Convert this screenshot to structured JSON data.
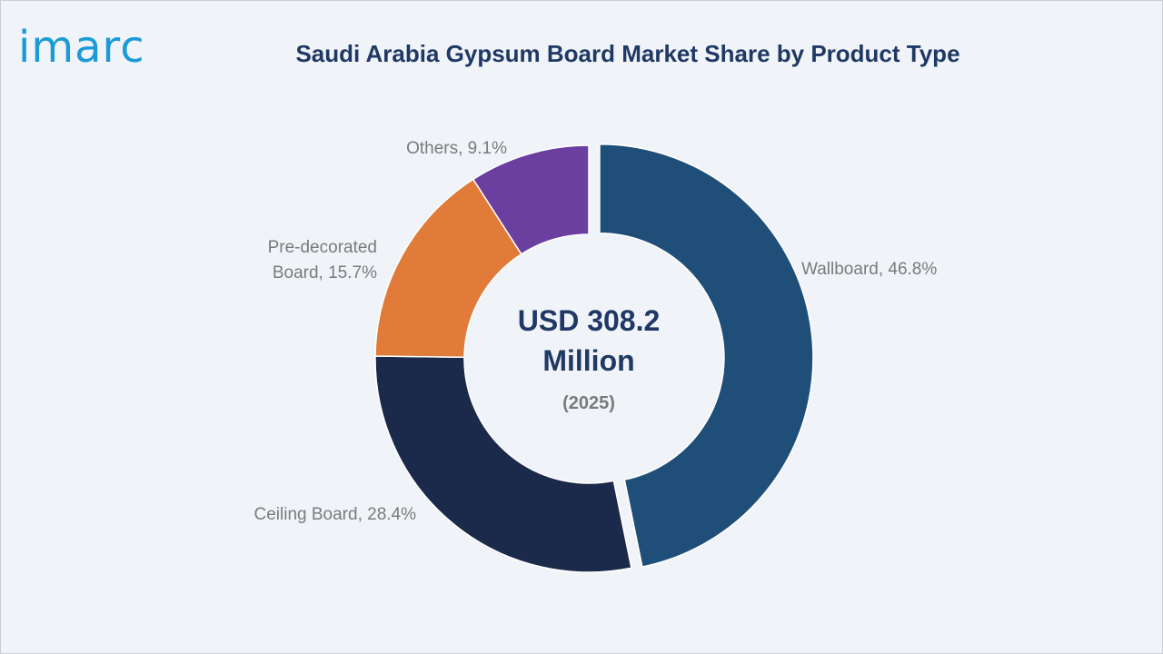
{
  "brand": {
    "logo_text": "imarc",
    "logo_color": "#1a9ad6"
  },
  "colors": {
    "title": "#1f3864",
    "label": "#7a7a7a",
    "center": "#1f3864",
    "center_year": "#7a7a7a",
    "background": "#f0f4f9"
  },
  "chart_data": {
    "type": "pie",
    "style": "donut",
    "title": "Saudi Arabia Gypsum Board Market Share by Product Type",
    "center_text": {
      "line1": "USD 308.2",
      "line2": "Million",
      "line3": "(2025)"
    },
    "unit": "%",
    "slices": [
      {
        "name": "Wallboard",
        "value": 46.8,
        "label": "Wallboard, 46.8%",
        "color": "#1f4e79",
        "exploded": true
      },
      {
        "name": "Ceiling Board",
        "value": 28.4,
        "label": "Ceiling Board, 28.4%",
        "color": "#1b2a4a",
        "exploded": false
      },
      {
        "name": "Pre-decorated Board",
        "value": 15.7,
        "label_lines": [
          "Pre-decorated",
          "Board, 15.7%"
        ],
        "color": "#e07b39",
        "exploded": false
      },
      {
        "name": "Others",
        "value": 9.1,
        "label": "Others, 9.1%",
        "color": "#6a3fa0",
        "exploded": false
      }
    ]
  }
}
